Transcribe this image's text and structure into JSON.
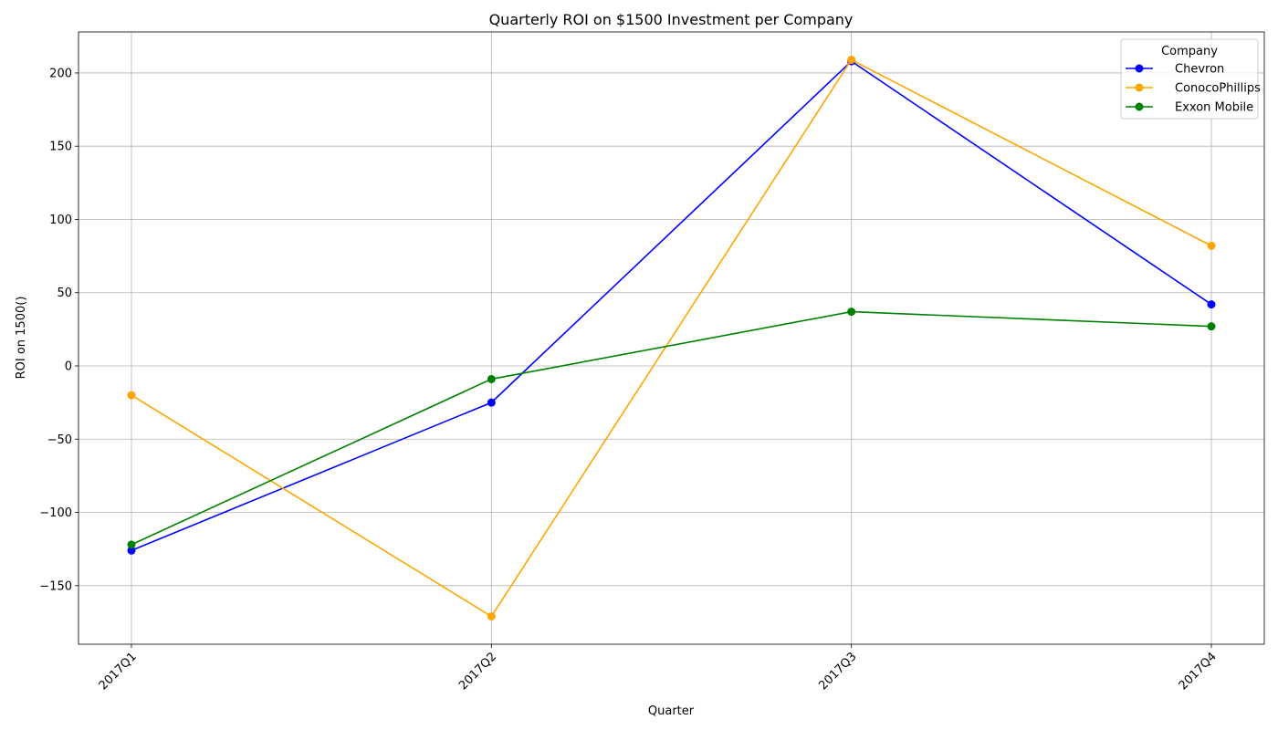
{
  "chart_data": {
    "type": "line",
    "title": "Quarterly ROI on $1500 Investment per Company",
    "xlabel": "Quarter",
    "ylabel": "ROI on 1500()",
    "categories": [
      "2017Q1",
      "2017Q2",
      "2017Q3",
      "2017Q4"
    ],
    "ylim": [
      -190,
      228
    ],
    "yticks": [
      -150,
      -100,
      -50,
      0,
      50,
      100,
      150,
      200
    ],
    "ytick_labels": [
      "−150",
      "−100",
      "−50",
      "0",
      "50",
      "100",
      "150",
      "200"
    ],
    "grid": true,
    "legend": {
      "title": "Company",
      "placement": "top-right"
    },
    "series": [
      {
        "name": "Chevron",
        "color": "#0000ff",
        "values": [
          -126,
          -25,
          208,
          42
        ]
      },
      {
        "name": "ConocoPhillips",
        "color": "#ffa500",
        "values": [
          -20,
          -171,
          209,
          82
        ]
      },
      {
        "name": "Exxon Mobile",
        "color": "#008000",
        "values": [
          -122,
          -9,
          37,
          27
        ]
      }
    ]
  }
}
